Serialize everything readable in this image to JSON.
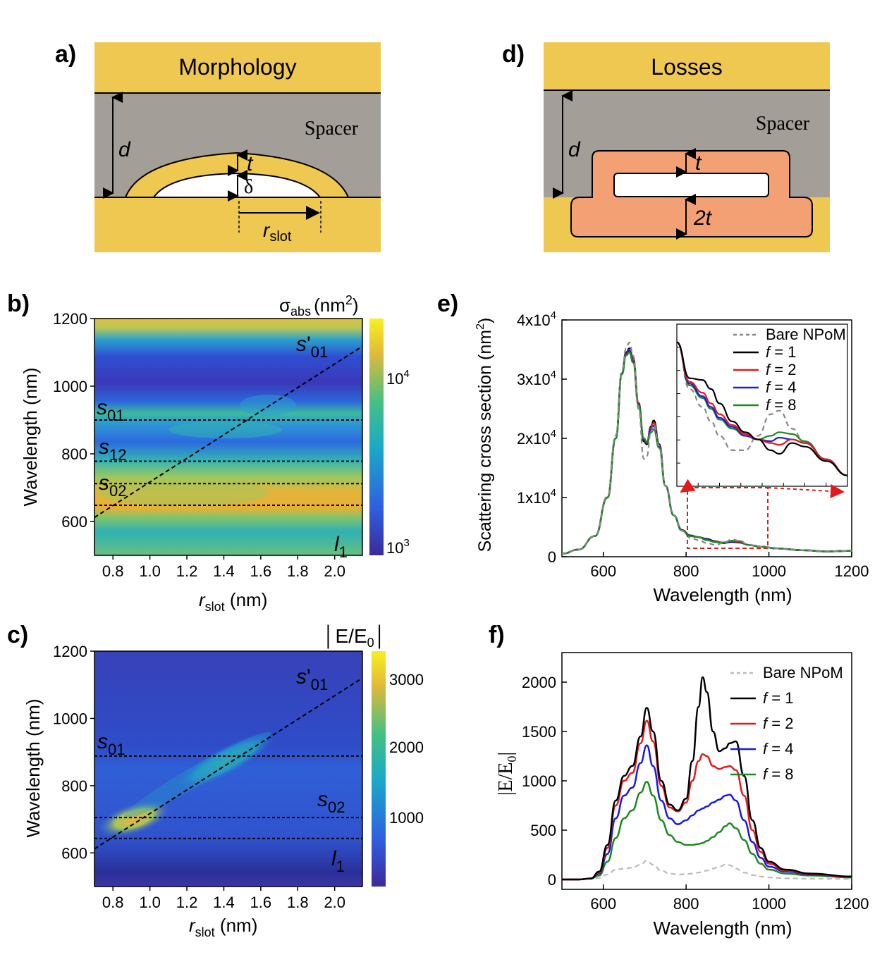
{
  "panels": {
    "a": {
      "label": "a)",
      "title": "Morphology",
      "spacer": "Spacer",
      "d": "d",
      "t": "t",
      "delta": "δ",
      "r": "r",
      "r_sub": "slot"
    },
    "d": {
      "label": "d)",
      "title": "Losses",
      "spacer": "Spacer",
      "d": "d",
      "t": "t",
      "two_t": "2t"
    },
    "b": {
      "label": "b)",
      "colorbar_title": "σ",
      "colorbar_title_sub": "abs",
      "colorbar_title_unit": "(nm",
      "colorbar_title_sup": "2",
      "colorbar_title_close": ")",
      "cb_ticks": [
        {
          "base": "10",
          "exp": "4"
        },
        {
          "base": "10",
          "exp": "3"
        }
      ],
      "ylabel": "Wavelength (nm)",
      "xlabel_r": "r",
      "xlabel_sub": "slot",
      "xlabel_unit": " (nm)",
      "xticks": [
        "0.8",
        "1.0",
        "1.2",
        "1.4",
        "1.6",
        "1.8",
        "2.0"
      ],
      "yticks": [
        "1200",
        "1000",
        "800",
        "600"
      ],
      "modes": [
        {
          "s": "s",
          "sub": "01",
          "prime": ""
        },
        {
          "s": "s",
          "sub": "12",
          "prime": ""
        },
        {
          "s": "s",
          "sub": "02",
          "prime": ""
        },
        {
          "s": "l",
          "sub": "1",
          "prime": ""
        },
        {
          "s": "s",
          "sub": "01",
          "prime": "'"
        }
      ]
    },
    "c": {
      "label": "c)",
      "colorbar_title": "│E/E",
      "colorbar_title_sub": "0",
      "colorbar_title_close": "│",
      "cb_ticks": [
        "3000",
        "2000",
        "1000"
      ],
      "ylabel": "Wavelength (nm)",
      "xlabel_r": "r",
      "xlabel_sub": "slot",
      "xlabel_unit": " (nm)",
      "xticks": [
        "0.8",
        "1.0",
        "1.2",
        "1.4",
        "1.6",
        "1.8",
        "2.0"
      ],
      "yticks": [
        "1200",
        "1000",
        "800",
        "600"
      ],
      "modes": [
        {
          "s": "s",
          "sub": "01",
          "prime": ""
        },
        {
          "s": "s",
          "sub": "02",
          "prime": ""
        },
        {
          "s": "l",
          "sub": "1",
          "prime": ""
        },
        {
          "s": "s",
          "sub": "01",
          "prime": "'"
        }
      ]
    },
    "e": {
      "label": "e)",
      "ylabel": "Scattering cross section (nm",
      "ylabel_sup": "2",
      "ylabel_close": ")",
      "xlabel": "Wavelength (nm)"
    },
    "f": {
      "label": "f)",
      "ylabel": "|E/E",
      "ylabel_sub": "0",
      "ylabel_close": "|",
      "xlabel": "Wavelength (nm)"
    }
  },
  "legend": [
    {
      "name": "Bare NPoM",
      "color": "#888888",
      "dash": true
    },
    {
      "name": "f = 1",
      "color": "#000000",
      "dash": false
    },
    {
      "name": "f = 2",
      "color": "#e31a1c",
      "dash": false
    },
    {
      "name": "f = 4",
      "color": "#1a1ae8",
      "dash": false
    },
    {
      "name": "f = 8",
      "color": "#1f8a1f",
      "dash": false
    }
  ],
  "chart_data": [
    {
      "id": "b",
      "type": "heatmap",
      "xlabel": "r_slot (nm)",
      "ylabel": "Wavelength (nm)",
      "xlim": [
        0.7,
        2.15
      ],
      "ylim": [
        500,
        1200
      ],
      "colorbar": "σ_abs (nm²)",
      "colorbar_scale": "log",
      "colorbar_range": [
        1000,
        20000
      ],
      "mode_lines": [
        {
          "label": "s01",
          "y": 900
        },
        {
          "label": "s12",
          "y": 778
        },
        {
          "label": "s02",
          "y": 712
        },
        {
          "label": "l1",
          "y": 648
        },
        {
          "label": "s'01",
          "x": [
            0.7,
            2.15
          ],
          "y": [
            612,
            1118
          ]
        }
      ]
    },
    {
      "id": "c",
      "type": "heatmap",
      "xlabel": "r_slot (nm)",
      "ylabel": "Wavelength (nm)",
      "xlim": [
        0.7,
        2.15
      ],
      "ylim": [
        500,
        1200
      ],
      "colorbar": "|E/E0|",
      "colorbar_range": [
        0,
        3400
      ],
      "mode_lines": [
        {
          "label": "s01",
          "y": 888
        },
        {
          "label": "s02",
          "y": 705
        },
        {
          "label": "l1",
          "y": 643
        },
        {
          "label": "s'01",
          "x": [
            0.7,
            2.15
          ],
          "y": [
            612,
            1120
          ]
        }
      ]
    },
    {
      "id": "e",
      "type": "line",
      "xlabel": "Wavelength (nm)",
      "ylabel": "Scattering cross section (nm²)",
      "xlim": [
        500,
        1200
      ],
      "ylim": [
        0,
        40000
      ],
      "xticks": [
        "600",
        "800",
        "1000",
        "1200"
      ],
      "yticks": [
        {
          "base": "0",
          "exp": ""
        },
        {
          "base": "1x10",
          "exp": "4"
        },
        {
          "base": "2x10",
          "exp": "4"
        },
        {
          "base": "3x10",
          "exp": "4"
        },
        {
          "base": "4x10",
          "exp": "4"
        }
      ],
      "x": [
        500,
        540,
        580,
        610,
        630,
        645,
        655,
        663,
        672,
        685,
        698,
        705,
        715,
        722,
        735,
        750,
        770,
        790,
        810,
        830,
        850,
        870,
        890,
        910,
        930,
        950,
        980,
        1020,
        1080,
        1140,
        1200
      ],
      "series": [
        {
          "name": "f = 1",
          "values": [
            500,
            1200,
            3500,
            10000,
            20000,
            31000,
            34500,
            35200,
            33500,
            26000,
            19500,
            19000,
            22000,
            23000,
            19000,
            12000,
            7000,
            4500,
            3600,
            3300,
            3000,
            2600,
            2300,
            2500,
            2400,
            2000,
            1700,
            1400,
            1100,
            900,
            1000
          ]
        },
        {
          "name": "f = 2",
          "values": [
            500,
            1200,
            3500,
            10000,
            20000,
            31000,
            34300,
            35000,
            33300,
            26000,
            19800,
            19200,
            21800,
            22600,
            18800,
            12000,
            7000,
            4400,
            3500,
            3300,
            2900,
            2500,
            2300,
            2600,
            2500,
            2000,
            1700,
            1400,
            1100,
            900,
            1000
          ]
        },
        {
          "name": "f = 4",
          "values": [
            500,
            1200,
            3500,
            10000,
            20000,
            31000,
            34200,
            34800,
            33000,
            25800,
            19900,
            19300,
            21500,
            22100,
            18600,
            12000,
            7000,
            4400,
            3500,
            3300,
            2900,
            2500,
            2300,
            2600,
            2600,
            2000,
            1700,
            1400,
            1100,
            900,
            1000
          ]
        },
        {
          "name": "f = 8",
          "values": [
            500,
            1200,
            3500,
            10000,
            20000,
            30800,
            34000,
            34500,
            32800,
            25600,
            20000,
            19400,
            21000,
            21500,
            18400,
            12000,
            7000,
            4400,
            3500,
            3300,
            2800,
            2500,
            2400,
            2700,
            2600,
            2000,
            1700,
            1400,
            1100,
            900,
            1000
          ]
        },
        {
          "name": "Bare NPoM",
          "values": [
            500,
            1200,
            3500,
            10200,
            20500,
            31500,
            35200,
            36200,
            34000,
            25000,
            16500,
            17000,
            21000,
            22300,
            18800,
            12000,
            7000,
            4400,
            3200,
            2800,
            2300,
            2000,
            2300,
            2900,
            2700,
            2000,
            1700,
            1400,
            1100,
            900,
            1000
          ]
        }
      ],
      "inset": {
        "xlim": [
          800,
          1200
        ],
        "ylim": [
          500,
          5000
        ],
        "zoom_box": {
          "x": [
            815,
            1000
          ],
          "y": [
            1400,
            5000
          ]
        }
      }
    },
    {
      "id": "f",
      "type": "line",
      "xlabel": "Wavelength (nm)",
      "ylabel": "|E/E0|",
      "xlim": [
        500,
        1200
      ],
      "ylim": [
        -100,
        2300
      ],
      "xticks": [
        "600",
        "800",
        "1000",
        "1200"
      ],
      "yticks": [
        "0",
        "500",
        "1000",
        "1500",
        "2000"
      ],
      "x": [
        500,
        540,
        570,
        590,
        610,
        630,
        650,
        670,
        690,
        705,
        720,
        740,
        760,
        780,
        800,
        815,
        830,
        840,
        850,
        865,
        880,
        895,
        905,
        920,
        940,
        960,
        980,
        1000,
        1040,
        1100,
        1200
      ],
      "series": [
        {
          "name": "f = 1",
          "values": [
            0,
            0,
            10,
            80,
            350,
            800,
            1050,
            1150,
            1450,
            1740,
            1500,
            1000,
            760,
            700,
            820,
            1200,
            1750,
            2050,
            1900,
            1500,
            1300,
            1330,
            1380,
            1400,
            1050,
            600,
            320,
            180,
            100,
            60,
            30
          ]
        },
        {
          "name": "f = 2",
          "values": [
            0,
            0,
            10,
            70,
            320,
            750,
            1000,
            1080,
            1380,
            1610,
            1400,
            950,
            730,
            690,
            780,
            1000,
            1200,
            1270,
            1250,
            1150,
            1120,
            1140,
            1150,
            1110,
            850,
            500,
            280,
            160,
            90,
            55,
            25
          ]
        },
        {
          "name": "f = 4",
          "values": [
            0,
            0,
            10,
            60,
            260,
            620,
            850,
            930,
            1180,
            1360,
            1150,
            800,
            620,
            560,
            600,
            650,
            700,
            720,
            740,
            780,
            810,
            850,
            860,
            800,
            600,
            380,
            220,
            130,
            80,
            50,
            25
          ]
        },
        {
          "name": "f = 8",
          "values": [
            0,
            0,
            10,
            40,
            180,
            420,
            620,
            700,
            880,
            990,
            850,
            600,
            450,
            380,
            350,
            350,
            360,
            370,
            390,
            430,
            480,
            540,
            570,
            520,
            400,
            260,
            160,
            100,
            60,
            40,
            20
          ]
        },
        {
          "name": "Bare NPoM",
          "values": [
            0,
            0,
            5,
            15,
            50,
            100,
            110,
            120,
            150,
            190,
            150,
            90,
            60,
            50,
            55,
            60,
            70,
            80,
            90,
            110,
            130,
            150,
            145,
            110,
            70,
            45,
            30,
            20,
            12,
            8,
            5
          ]
        }
      ]
    }
  ]
}
